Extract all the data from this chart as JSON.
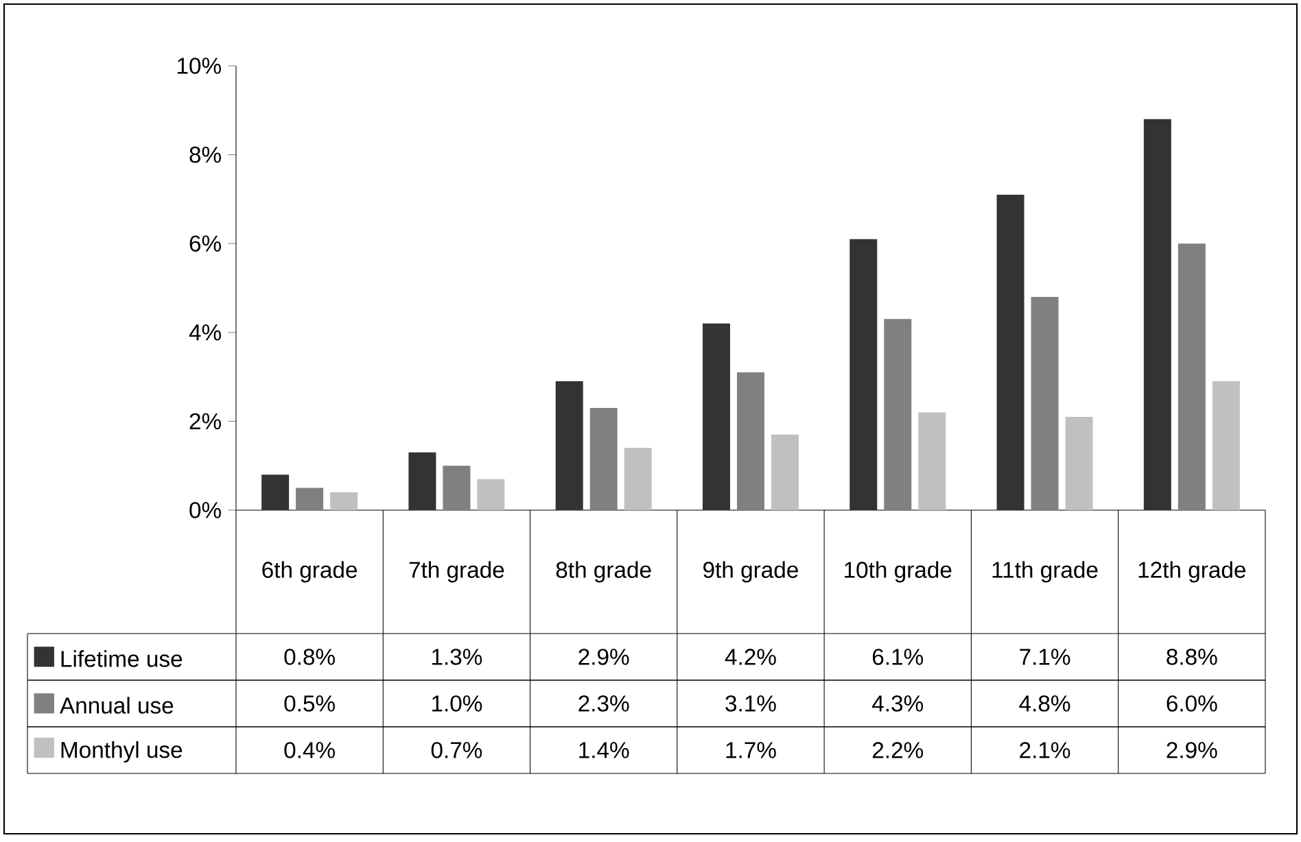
{
  "chart_data": {
    "type": "bar",
    "categories": [
      "6th grade",
      "7th grade",
      "8th grade",
      "9th grade",
      "10th grade",
      "11th grade",
      "12th grade"
    ],
    "series": [
      {
        "name": "Lifetime use",
        "color": "#333333",
        "values": [
          0.8,
          1.3,
          2.9,
          4.2,
          6.1,
          7.1,
          8.8
        ],
        "value_labels": [
          "0.8%",
          "1.3%",
          "2.9%",
          "4.2%",
          "6.1%",
          "7.1%",
          "8.8%"
        ]
      },
      {
        "name": "Annual use",
        "color": "#808080",
        "values": [
          0.5,
          1.0,
          2.3,
          3.1,
          4.3,
          4.8,
          6.0
        ],
        "value_labels": [
          "0.5%",
          "1.0%",
          "2.3%",
          "3.1%",
          "4.3%",
          "4.8%",
          "6.0%"
        ]
      },
      {
        "name": "Monthyl use",
        "color": "#c0c0c0",
        "values": [
          0.4,
          0.7,
          1.4,
          1.7,
          2.2,
          2.1,
          2.9
        ],
        "value_labels": [
          "0.4%",
          "0.7%",
          "1.4%",
          "1.7%",
          "2.2%",
          "2.1%",
          "2.9%"
        ]
      }
    ],
    "ylim": [
      0,
      10
    ],
    "yticks": [
      {
        "value": 0,
        "label": "0%"
      },
      {
        "value": 2,
        "label": "2%"
      },
      {
        "value": 4,
        "label": "4%"
      },
      {
        "value": 6,
        "label": "6%"
      },
      {
        "value": 8,
        "label": "8%"
      },
      {
        "value": 10,
        "label": "10%"
      }
    ],
    "grid": false,
    "legend": "bottom"
  }
}
